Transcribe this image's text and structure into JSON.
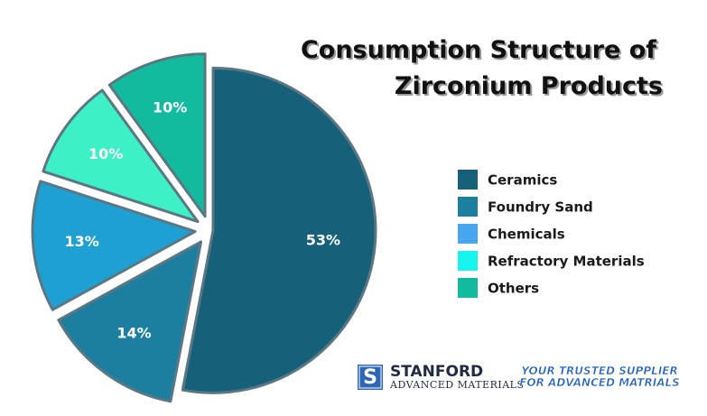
{
  "chart_data": {
    "type": "pie",
    "title_lines": [
      "Consumption Structure of",
      "Zirconium Products"
    ],
    "slices": [
      {
        "name": "Ceramics",
        "value": 53,
        "label": "53%",
        "color": "#17607a"
      },
      {
        "name": "Foundry Sand",
        "value": 14,
        "label": "14%",
        "color": "#1d7f9f"
      },
      {
        "name": "Chemicals",
        "value": 13,
        "label": "13%",
        "color": "#1ea0d3"
      },
      {
        "name": "Refractory Materials",
        "value": 10,
        "label": "10%",
        "color": "#3ef0c5"
      },
      {
        "name": "Others",
        "value": 10,
        "label": "10%",
        "color": "#12bb9d"
      }
    ],
    "legend": [
      {
        "label": "Ceramics",
        "color": "#17607a"
      },
      {
        "label": "Foundry Sand",
        "color": "#1d7f9f"
      },
      {
        "label": "Chemicals",
        "color": "#48a6ef"
      },
      {
        "label": "Refractory Materials",
        "color": "#18f3ee"
      },
      {
        "label": "Others",
        "color": "#12bb9d"
      }
    ],
    "legend_position": "right"
  },
  "branding": {
    "logo_letter": "S",
    "name": "STANFORD",
    "subtitle": "ADVANCED MATERIALS",
    "slogan_lines": [
      "YOUR TRUSTED SUPPLIER",
      "FOR ADVANCED MATRIALS"
    ]
  }
}
